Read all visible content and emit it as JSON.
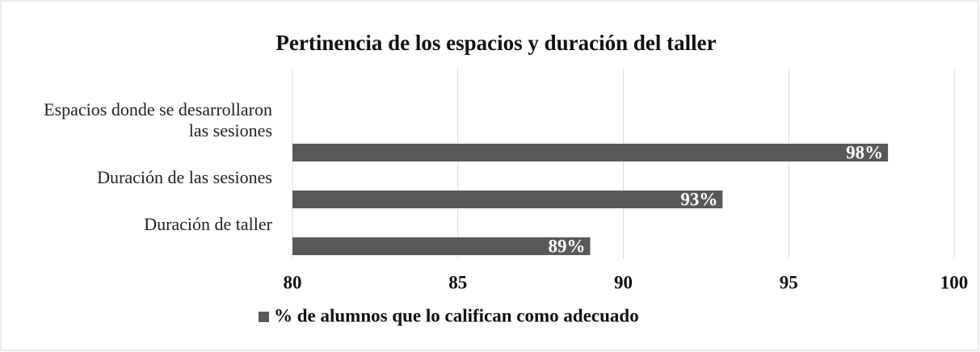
{
  "chart_data": {
    "type": "bar",
    "orientation": "horizontal",
    "title": "Pertinencia de los espacios y duración del taller",
    "categories": [
      "Espacios donde se desarrollaron las sesiones",
      "Duración de las sesiones",
      "Duración de taller"
    ],
    "series": [
      {
        "name": "% de alumnos que lo califican como adecuado",
        "color": "#595959",
        "values": [
          98,
          93,
          89
        ],
        "value_labels": [
          "98%",
          "93%",
          "89%"
        ]
      }
    ],
    "xlim": [
      80,
      100
    ],
    "xticks": [
      80,
      85,
      90,
      95,
      100
    ],
    "grid": true,
    "legend": "bottom"
  }
}
